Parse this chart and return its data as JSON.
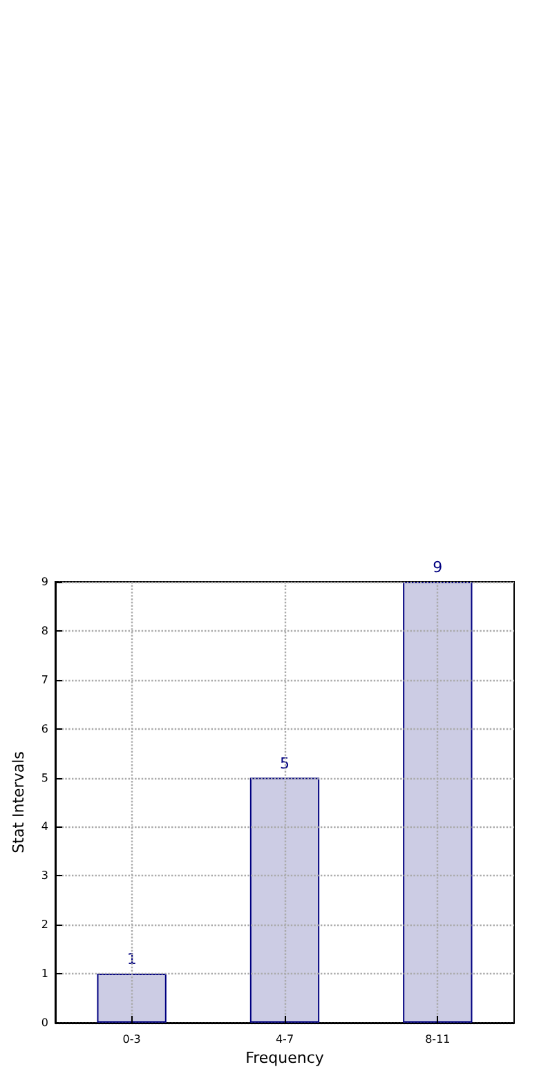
{
  "chart_data": {
    "type": "bar",
    "xlabel": "Frequency",
    "ylabel": "Stat Intervals",
    "categories": [
      "0-3",
      "4-7",
      "8-11"
    ],
    "values": [
      1,
      5,
      9
    ],
    "color": "#cccce4",
    "ylim": [
      0,
      9
    ],
    "yticks": [
      0,
      1,
      2,
      3,
      4,
      5,
      6,
      7,
      8,
      9
    ],
    "grid": true,
    "data_labels": true
  }
}
